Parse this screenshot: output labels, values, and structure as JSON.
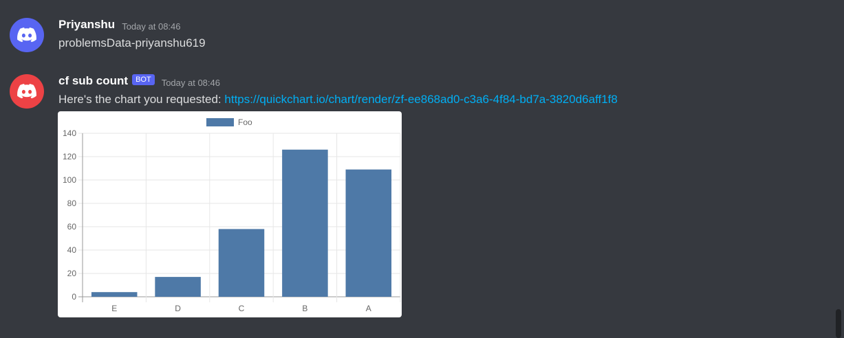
{
  "messages": [
    {
      "username": "Priyanshu",
      "timestamp": "Today at 08:46",
      "text": "problemsData-priyanshu619",
      "avatar_color": "#5865f2",
      "avatar_icon": "discord-logo-icon"
    },
    {
      "username": "cf sub count",
      "badge": "BOT",
      "timestamp": "Today at 08:46",
      "text_prefix": "Here's the chart you requested: ",
      "link": "https://quickchart.io/chart/render/zf-ee868ad0-c3a6-4f84-bd7a-3820d6aff1f8",
      "avatar_color": "#ed4245",
      "avatar_icon": "discord-logo-icon"
    }
  ],
  "colors": {
    "background": "#36393f",
    "link": "#00aff4",
    "badge": "#5865f2",
    "bar": "#4e79a7"
  },
  "chart_data": {
    "type": "bar",
    "categories": [
      "E",
      "D",
      "C",
      "B",
      "A"
    ],
    "series": [
      {
        "name": "Foo",
        "values": [
          4,
          17,
          58,
          126,
          109
        ]
      }
    ],
    "ylim": [
      0,
      140
    ],
    "yticks": [
      0,
      20,
      40,
      60,
      80,
      100,
      120,
      140
    ],
    "grid": true,
    "legend": "top-center",
    "title": "",
    "xlabel": "",
    "ylabel": ""
  }
}
